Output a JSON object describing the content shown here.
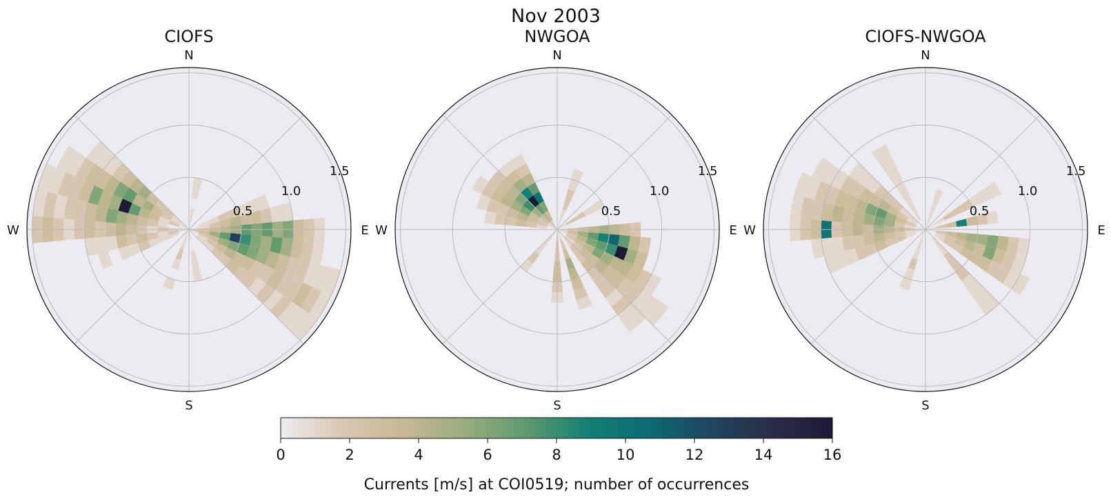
{
  "figure": {
    "title": "Nov 2003"
  },
  "chart_data": [
    {
      "type": "polar-histogram",
      "title": "CIOFS",
      "directions": [
        "N",
        "E",
        "S",
        "W"
      ],
      "radial_ticks": [
        0.5,
        1.0,
        1.5
      ],
      "radial_max": 1.55,
      "sector_width_deg": 10,
      "bin_width": 0.1,
      "wedges": [
        {
          "dir": 270,
          "counts": [
            0,
            1,
            2,
            1,
            2,
            3,
            4,
            3,
            2,
            3,
            2,
            1,
            2,
            3,
            2
          ]
        },
        {
          "dir": 280,
          "counts": [
            1,
            0,
            1,
            2,
            3,
            4,
            5,
            6,
            4,
            3,
            2,
            2,
            1,
            2,
            1
          ]
        },
        {
          "dir": 290,
          "counts": [
            0,
            2,
            1,
            3,
            4,
            7,
            16,
            5,
            4,
            6,
            3,
            2,
            2,
            1,
            1
          ]
        },
        {
          "dir": 300,
          "counts": [
            1,
            1,
            2,
            3,
            5,
            4,
            7,
            6,
            4,
            3,
            3,
            2,
            1,
            1,
            0
          ]
        },
        {
          "dir": 310,
          "counts": [
            0,
            1,
            2,
            2,
            3,
            5,
            4,
            3,
            2,
            1,
            1,
            1,
            0,
            0,
            0
          ]
        },
        {
          "dir": 260,
          "counts": [
            1,
            2,
            1,
            2,
            3,
            2,
            3,
            1,
            1,
            1,
            0,
            0,
            0,
            0,
            0
          ]
        },
        {
          "dir": 250,
          "counts": [
            0,
            1,
            1,
            1,
            2,
            1,
            1,
            0,
            1,
            0,
            0,
            0,
            0,
            0,
            0
          ]
        },
        {
          "dir": 90,
          "counts": [
            1,
            2,
            3,
            4,
            5,
            7,
            6,
            7,
            5,
            6,
            3,
            2,
            1,
            0,
            0
          ]
        },
        {
          "dir": 100,
          "counts": [
            2,
            3,
            5,
            7,
            13,
            8,
            6,
            5,
            7,
            5,
            3,
            2,
            1,
            0,
            0
          ]
        },
        {
          "dir": 110,
          "counts": [
            1,
            2,
            3,
            5,
            6,
            7,
            6,
            5,
            4,
            3,
            2,
            2,
            1,
            1,
            1
          ]
        },
        {
          "dir": 120,
          "counts": [
            0,
            1,
            2,
            3,
            4,
            3,
            3,
            2,
            2,
            3,
            2,
            2,
            3,
            2,
            1
          ]
        },
        {
          "dir": 130,
          "counts": [
            0,
            1,
            1,
            2,
            2,
            3,
            2,
            2,
            1,
            2,
            1,
            2,
            1,
            1,
            1
          ]
        },
        {
          "dir": 80,
          "counts": [
            1,
            1,
            2,
            3,
            4,
            3,
            3,
            2,
            1,
            1,
            0,
            0,
            0,
            0,
            0
          ]
        },
        {
          "dir": 70,
          "counts": [
            0,
            1,
            1,
            2,
            2,
            1,
            1,
            1,
            0,
            0,
            0,
            0,
            0,
            0,
            0
          ]
        },
        {
          "dir": 10,
          "counts": [
            1,
            1,
            0,
            1,
            1,
            0,
            0,
            0,
            0,
            0,
            0,
            0,
            0,
            0,
            0
          ]
        },
        {
          "dir": 200,
          "counts": [
            1,
            1,
            2,
            1,
            0,
            1,
            0,
            0,
            0,
            0,
            0,
            0,
            0,
            0,
            0
          ]
        },
        {
          "dir": 170,
          "counts": [
            1,
            0,
            1,
            1,
            1,
            0,
            0,
            0,
            0,
            0,
            0,
            0,
            0,
            0,
            0
          ]
        }
      ]
    },
    {
      "type": "polar-histogram",
      "title": "NWGOA",
      "directions": [
        "N",
        "E",
        "S",
        "W"
      ],
      "radial_ticks": [
        0.5,
        1.0,
        1.5
      ],
      "radial_max": 1.55,
      "sector_width_deg": 10,
      "bin_width": 0.1,
      "wedges": [
        {
          "dir": 300,
          "counts": [
            1,
            2,
            3,
            6,
            5,
            4,
            3,
            2,
            1,
            0,
            0,
            0,
            0,
            0,
            0
          ]
        },
        {
          "dir": 310,
          "counts": [
            1,
            3,
            5,
            8,
            6,
            4,
            3,
            2,
            0,
            0,
            0,
            0,
            0,
            0,
            0
          ]
        },
        {
          "dir": 320,
          "counts": [
            2,
            4,
            7,
            16,
            9,
            5,
            3,
            1,
            0,
            0,
            0,
            0,
            0,
            0,
            0
          ]
        },
        {
          "dir": 330,
          "counts": [
            1,
            3,
            6,
            10,
            7,
            4,
            2,
            1,
            0,
            0,
            0,
            0,
            0,
            0,
            0
          ]
        },
        {
          "dir": 290,
          "counts": [
            0,
            2,
            3,
            4,
            3,
            2,
            2,
            1,
            0,
            0,
            0,
            0,
            0,
            0,
            0
          ]
        },
        {
          "dir": 280,
          "counts": [
            0,
            1,
            2,
            3,
            2,
            2,
            1,
            0,
            0,
            0,
            0,
            0,
            0,
            0,
            0
          ]
        },
        {
          "dir": 100,
          "counts": [
            1,
            3,
            5,
            7,
            9,
            11,
            7,
            4,
            2,
            0,
            0,
            0,
            0,
            0,
            0
          ]
        },
        {
          "dir": 110,
          "counts": [
            1,
            2,
            4,
            6,
            7,
            8,
            16,
            5,
            3,
            0,
            0,
            0,
            0,
            0,
            0
          ]
        },
        {
          "dir": 120,
          "counts": [
            0,
            2,
            3,
            4,
            6,
            5,
            4,
            4,
            3,
            2,
            1,
            0,
            0,
            0,
            0
          ]
        },
        {
          "dir": 130,
          "counts": [
            0,
            1,
            2,
            3,
            3,
            4,
            3,
            3,
            2,
            2,
            1,
            1,
            1,
            0,
            0
          ]
        },
        {
          "dir": 140,
          "counts": [
            0,
            1,
            2,
            2,
            3,
            2,
            2,
            2,
            1,
            2,
            1,
            1,
            0,
            0,
            0
          ]
        },
        {
          "dir": 90,
          "counts": [
            1,
            2,
            3,
            4,
            5,
            4,
            3,
            2,
            0,
            0,
            0,
            0,
            0,
            0,
            0
          ]
        },
        {
          "dir": 160,
          "counts": [
            1,
            2,
            3,
            5,
            4,
            3,
            2,
            1,
            0,
            0,
            0,
            0,
            0,
            0,
            0
          ]
        },
        {
          "dir": 180,
          "counts": [
            1,
            2,
            2,
            3,
            3,
            2,
            1,
            0,
            0,
            0,
            0,
            0,
            0,
            0,
            0
          ]
        },
        {
          "dir": 20,
          "counts": [
            1,
            1,
            2,
            2,
            1,
            1,
            0,
            0,
            0,
            0,
            0,
            0,
            0,
            0,
            0
          ]
        },
        {
          "dir": 60,
          "counts": [
            1,
            2,
            2,
            1,
            1,
            0,
            0,
            0,
            0,
            0,
            0,
            0,
            0,
            0,
            0
          ]
        },
        {
          "dir": 220,
          "counts": [
            1,
            1,
            1,
            2,
            1,
            0,
            0,
            0,
            0,
            0,
            0,
            0,
            0,
            0,
            0
          ]
        }
      ]
    },
    {
      "type": "polar-histogram",
      "title": "CIOFS-NWGOA",
      "directions": [
        "N",
        "E",
        "S",
        "W"
      ],
      "radial_ticks": [
        0.5,
        1.0,
        1.5
      ],
      "radial_max": 1.55,
      "sector_width_deg": 10,
      "bin_width": 0.1,
      "wedges": [
        {
          "dir": 270,
          "counts": [
            1,
            2,
            3,
            4,
            5,
            3,
            4,
            3,
            2,
            10,
            3,
            2,
            1,
            0,
            0
          ]
        },
        {
          "dir": 280,
          "counts": [
            0,
            1,
            2,
            5,
            6,
            5,
            4,
            3,
            4,
            3,
            2,
            2,
            1,
            0,
            0
          ]
        },
        {
          "dir": 290,
          "counts": [
            1,
            2,
            3,
            5,
            7,
            6,
            4,
            3,
            3,
            2,
            2,
            1,
            1,
            0,
            0
          ]
        },
        {
          "dir": 300,
          "counts": [
            0,
            1,
            2,
            3,
            4,
            3,
            3,
            2,
            2,
            1,
            1,
            1,
            0,
            0,
            0
          ]
        },
        {
          "dir": 260,
          "counts": [
            1,
            1,
            2,
            3,
            4,
            3,
            2,
            2,
            1,
            1,
            1,
            0,
            0,
            0,
            0
          ]
        },
        {
          "dir": 250,
          "counts": [
            0,
            1,
            2,
            2,
            3,
            2,
            2,
            1,
            1,
            1,
            0,
            0,
            0,
            0,
            0
          ]
        },
        {
          "dir": 310,
          "counts": [
            0,
            1,
            1,
            2,
            2,
            2,
            1,
            1,
            1,
            0,
            0,
            0,
            0,
            0,
            0
          ]
        },
        {
          "dir": 100,
          "counts": [
            1,
            2,
            3,
            4,
            5,
            5,
            6,
            4,
            2,
            1,
            0,
            0,
            0,
            0,
            0
          ]
        },
        {
          "dir": 110,
          "counts": [
            0,
            1,
            2,
            3,
            4,
            3,
            6,
            3,
            2,
            1,
            0,
            0,
            0,
            0,
            0
          ]
        },
        {
          "dir": 120,
          "counts": [
            0,
            1,
            2,
            2,
            3,
            3,
            3,
            2,
            2,
            1,
            1,
            0,
            0,
            0,
            0
          ]
        },
        {
          "dir": 80,
          "counts": [
            1,
            2,
            3,
            9,
            3,
            2,
            1,
            0,
            0,
            0,
            0,
            0,
            0,
            0,
            0
          ]
        },
        {
          "dir": 60,
          "counts": [
            1,
            1,
            2,
            2,
            2,
            1,
            1,
            1,
            0,
            0,
            0,
            0,
            0,
            0,
            0
          ]
        },
        {
          "dir": 140,
          "counts": [
            0,
            1,
            1,
            2,
            2,
            2,
            1,
            1,
            1,
            1,
            0,
            0,
            0,
            0,
            0
          ]
        },
        {
          "dir": 20,
          "counts": [
            1,
            1,
            1,
            1,
            0,
            0,
            0,
            0,
            0,
            0,
            0,
            0,
            0,
            0,
            0
          ]
        },
        {
          "dir": 200,
          "counts": [
            1,
            1,
            1,
            2,
            1,
            1,
            0,
            0,
            0,
            0,
            0,
            0,
            0,
            0,
            0
          ]
        },
        {
          "dir": 330,
          "counts": [
            0,
            1,
            1,
            1,
            1,
            1,
            1,
            1,
            1,
            0,
            0,
            0,
            0,
            0,
            0
          ]
        }
      ]
    }
  ],
  "colorbar": {
    "label": "Currents [m/s] at COI0519; number of occurrences",
    "min": 0,
    "max": 16,
    "ticks": [
      0,
      2,
      4,
      6,
      8,
      10,
      12,
      14,
      16
    ],
    "colormap": [
      "#efedf0",
      "#d9c7b3",
      "#c8b893",
      "#99ad7e",
      "#5f9a6e",
      "#138174",
      "#0c6b73",
      "#1f4760",
      "#2a2d48",
      "#1d1a35"
    ]
  },
  "colors": {
    "axes_background": "#ecebf2",
    "grid": "#b8b8bc",
    "frame": "#111111"
  }
}
